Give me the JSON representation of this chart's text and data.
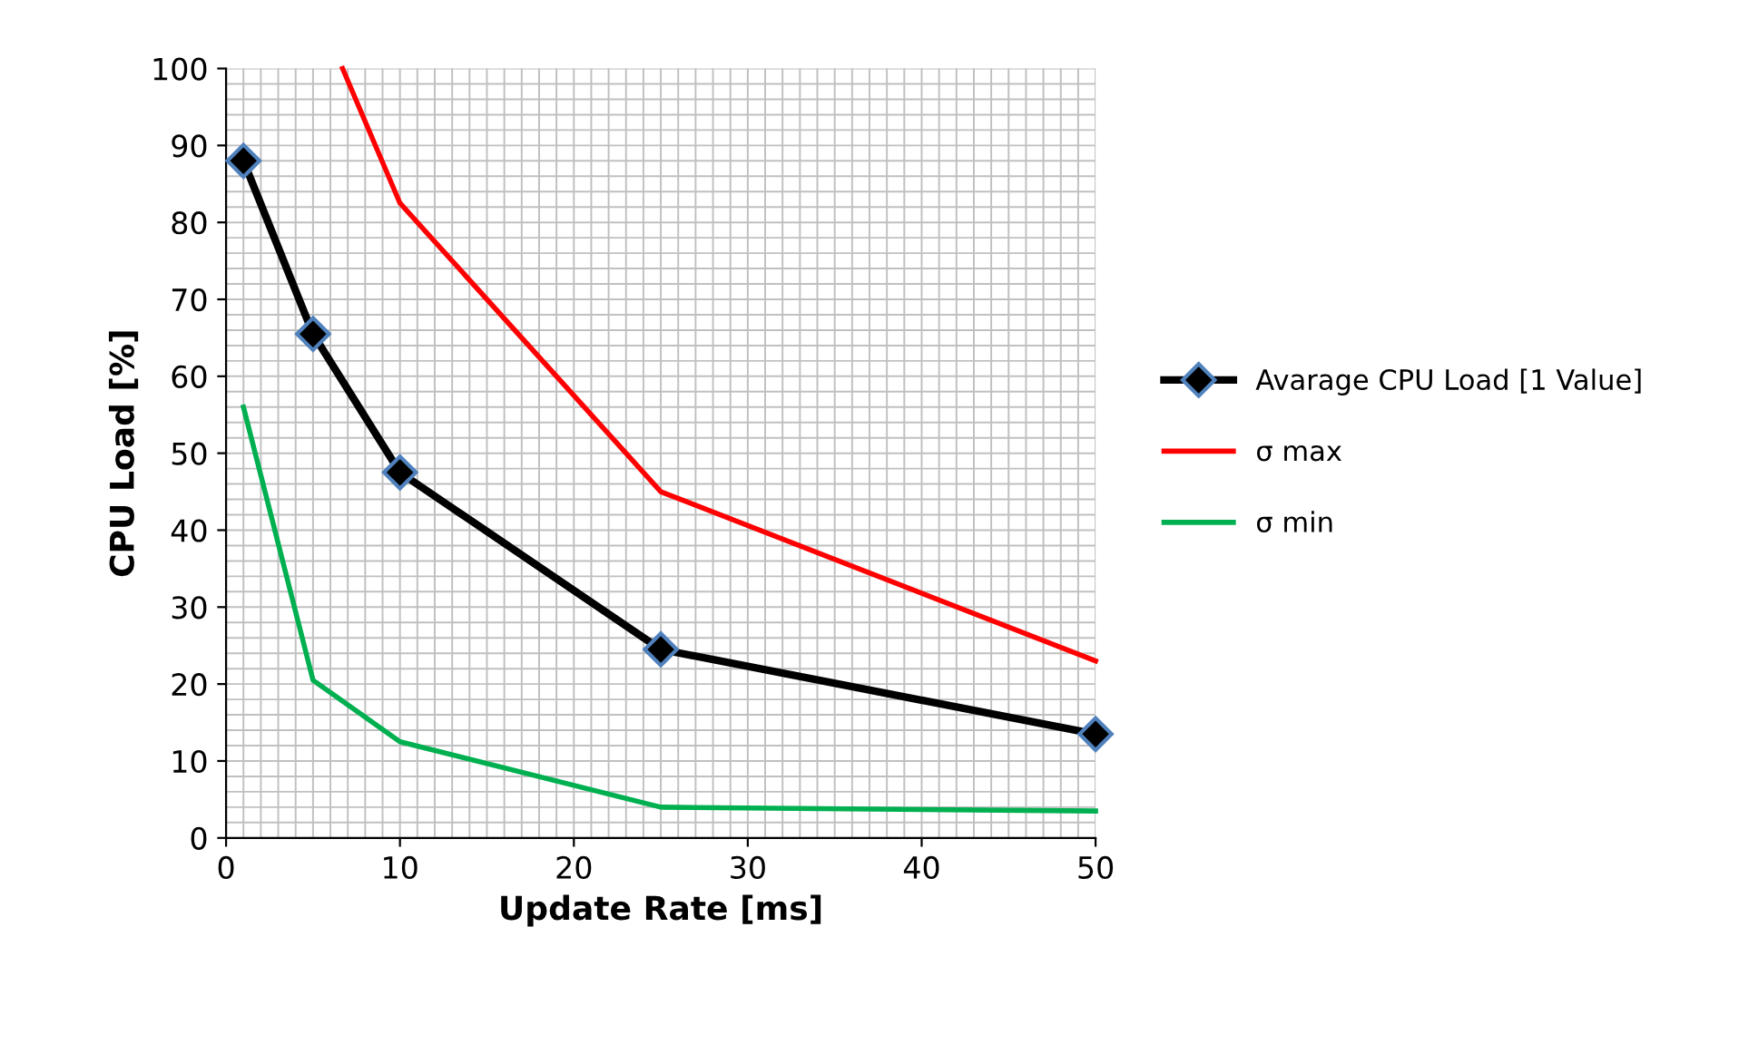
{
  "chart_data": {
    "type": "line",
    "xlabel": "Update Rate [ms]",
    "ylabel": "CPU Load [%]",
    "xlim": [
      0,
      50
    ],
    "xticks": [
      0,
      10,
      20,
      30,
      40,
      50
    ],
    "ylim": [
      0,
      100
    ],
    "yticks": [
      0,
      10,
      20,
      30,
      40,
      50,
      60,
      70,
      80,
      90,
      100
    ],
    "grid": true,
    "legend": "right",
    "series": [
      {
        "name": "Avarage CPU Load [1 Value]",
        "color": "#000000",
        "marker": "diamond",
        "x": [
          1,
          5,
          10,
          25,
          50
        ],
        "values": [
          88,
          65.5,
          47.5,
          24.5,
          13.5
        ]
      },
      {
        "name": "σ max",
        "color": "#ff0000",
        "marker": "none",
        "x": [
          6.7,
          10,
          25,
          50
        ],
        "values": [
          100,
          82.5,
          45,
          23
        ]
      },
      {
        "name": "σ min",
        "color": "#00b050",
        "marker": "none",
        "x": [
          1,
          5,
          10,
          25,
          50
        ],
        "values": [
          56,
          20.5,
          12.5,
          4,
          3.5
        ]
      }
    ]
  }
}
